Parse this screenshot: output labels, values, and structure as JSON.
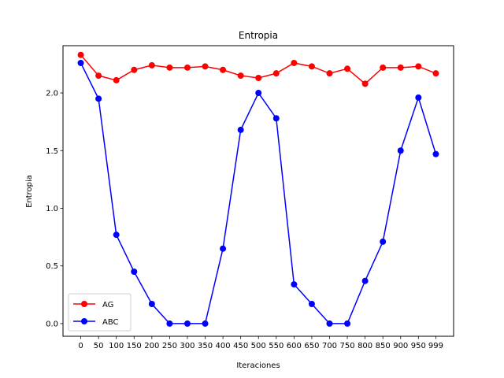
{
  "chart_data": {
    "type": "line",
    "title": "Entropia",
    "xlabel": "Iteraciones",
    "ylabel": "Entropia",
    "x": [
      0,
      50,
      100,
      150,
      200,
      250,
      300,
      350,
      400,
      450,
      500,
      550,
      600,
      650,
      700,
      750,
      800,
      850,
      900,
      950,
      999
    ],
    "x_tick_labels": [
      "0",
      "50",
      "100",
      "150",
      "200",
      "250",
      "300",
      "350",
      "400",
      "450",
      "500",
      "550",
      "600",
      "650",
      "700",
      "750",
      "800",
      "850",
      "900",
      "950",
      "999"
    ],
    "y_ticks": [
      "0.0",
      "0.5",
      "1.0",
      "1.5",
      "2.0"
    ],
    "ylim": [
      -0.11,
      2.41
    ],
    "grid": false,
    "legend_position": "lower-left",
    "series": [
      {
        "name": "AG",
        "color": "#ff0000",
        "values": [
          2.33,
          2.15,
          2.11,
          2.2,
          2.24,
          2.22,
          2.22,
          2.23,
          2.2,
          2.15,
          2.13,
          2.17,
          2.26,
          2.23,
          2.17,
          2.21,
          2.08,
          2.22,
          2.22,
          2.23,
          2.17
        ]
      },
      {
        "name": "ABC",
        "color": "#0000ff",
        "values": [
          2.26,
          1.95,
          0.77,
          0.45,
          0.17,
          0.0,
          0.0,
          0.0,
          0.65,
          1.68,
          2.0,
          1.78,
          0.34,
          0.17,
          0.0,
          0.0,
          0.37,
          0.71,
          1.5,
          1.96,
          1.47
        ]
      }
    ]
  }
}
